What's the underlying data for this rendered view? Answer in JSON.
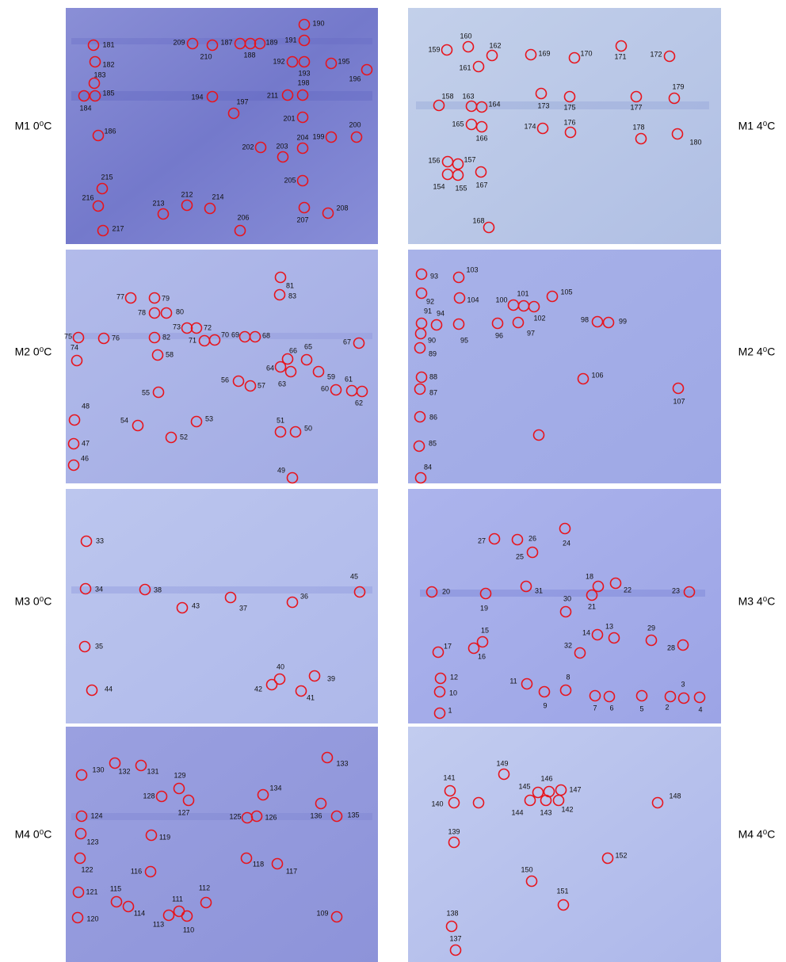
{
  "panels": [
    {
      "label": "M1 0⁰C",
      "spots": [
        181,
        182,
        183,
        185,
        184,
        186,
        209,
        210,
        187,
        188,
        189,
        190,
        191,
        192,
        193,
        195,
        196,
        194,
        197,
        211,
        198,
        201,
        200,
        199,
        204,
        202,
        203,
        205,
        215,
        216,
        213,
        212,
        214,
        206,
        207,
        208,
        217
      ]
    },
    {
      "label": "M1 4⁰C",
      "spots": [
        160,
        159,
        162,
        161,
        169,
        170,
        171,
        172,
        179,
        158,
        163,
        164,
        173,
        175,
        177,
        165,
        166,
        174,
        176,
        178,
        180,
        156,
        157,
        154,
        155,
        167,
        168
      ]
    },
    {
      "label": "M2 0⁰C",
      "spots": [
        81,
        77,
        79,
        83,
        78,
        80,
        73,
        72,
        75,
        76,
        82,
        71,
        70,
        69,
        68,
        67,
        74,
        58,
        66,
        65,
        64,
        63,
        59,
        56,
        57,
        61,
        60,
        62,
        55,
        48,
        54,
        53,
        52,
        51,
        50,
        47,
        46,
        49
      ]
    },
    {
      "label": "M2 4⁰C",
      "spots": [
        93,
        103,
        92,
        104,
        100,
        101,
        105,
        91,
        94,
        102,
        90,
        95,
        96,
        97,
        98,
        99,
        89,
        88,
        87,
        106,
        107,
        86,
        85,
        84
      ]
    },
    {
      "label": "M3 0⁰C",
      "spots": [
        33,
        34,
        38,
        37,
        36,
        45,
        43,
        35,
        40,
        39,
        42,
        41,
        44
      ]
    },
    {
      "label": "M3 4⁰C",
      "spots": [
        24,
        27,
        26,
        25,
        18,
        22,
        31,
        20,
        19,
        21,
        30,
        23,
        15,
        14,
        13,
        29,
        16,
        32,
        28,
        17,
        12,
        11,
        8,
        9,
        10,
        7,
        6,
        5,
        2,
        3,
        4,
        1
      ]
    },
    {
      "label": "M4 0⁰C",
      "spots": [
        133,
        130,
        132,
        131,
        129,
        134,
        128,
        127,
        136,
        135,
        124,
        125,
        126,
        123,
        119,
        122,
        118,
        117,
        116,
        121,
        115,
        112,
        114,
        111,
        113,
        110,
        109,
        120
      ]
    },
    {
      "label": "M4 4⁰C",
      "spots": [
        149,
        141,
        146,
        145,
        147,
        148,
        140,
        144,
        143,
        142,
        139,
        152,
        150,
        151,
        138,
        137
      ]
    }
  ]
}
